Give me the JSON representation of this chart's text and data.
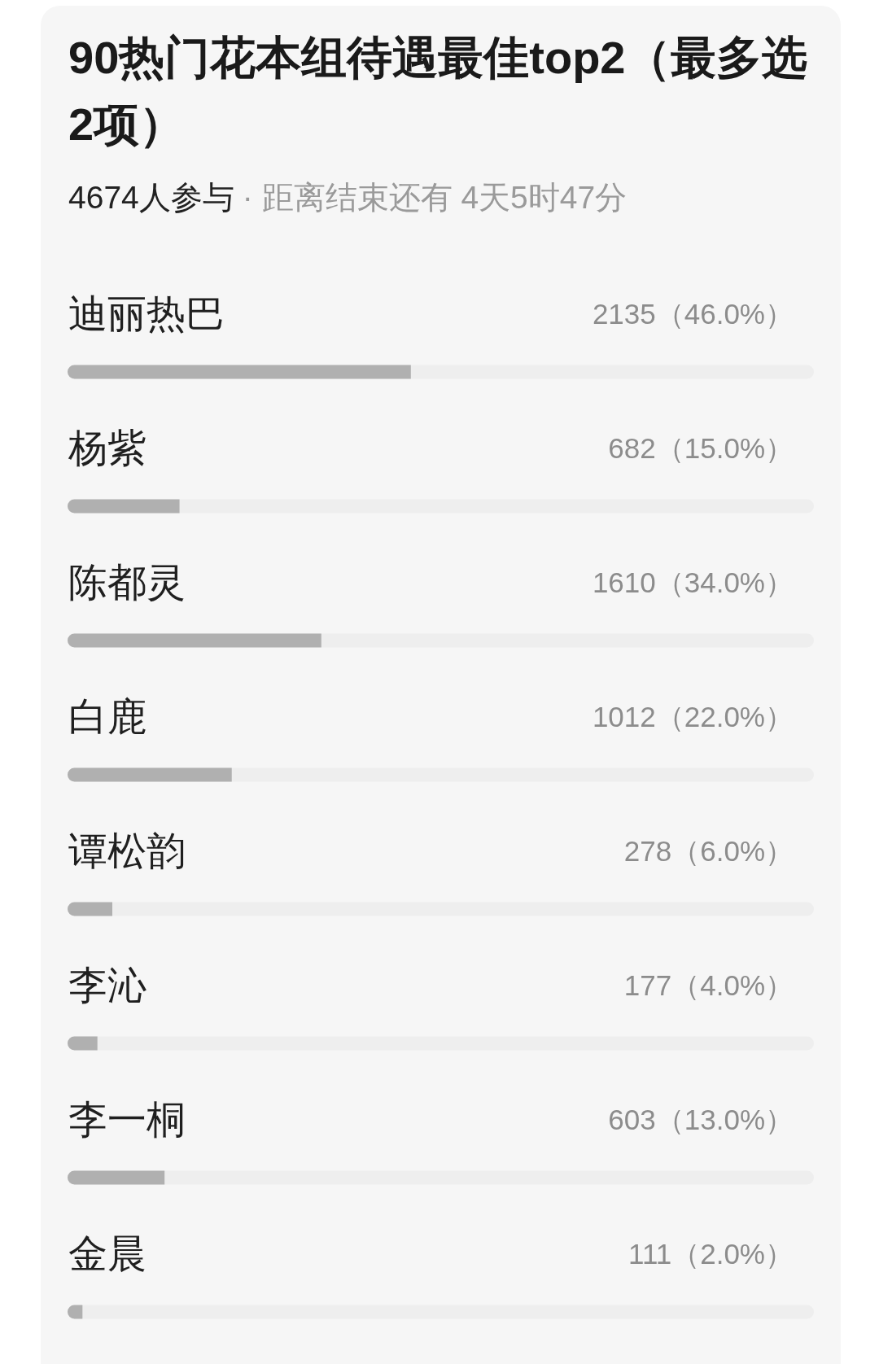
{
  "chart_data": {
    "type": "bar",
    "orientation": "horizontal",
    "title": "90热门花本组待遇最佳top2（最多选2项）",
    "subtitle": "4674人参与",
    "annotations": [
      "· 距离结束还有 4天5时47分"
    ],
    "categories": [
      "迪丽热巴",
      "杨紫",
      "陈都灵",
      "白鹿",
      "谭松韵",
      "李沁",
      "李一桐",
      "金晨"
    ],
    "values": [
      46,
      15,
      34,
      22,
      6,
      4,
      13,
      2
    ],
    "value_labels": [
      "2135（46.0%）",
      "682（15.0%）",
      "1610（34.0%）",
      "1012（22.0%）",
      "278（6.0%）",
      "177（4.0%）",
      "603（13.0%）",
      "111（2.0%）"
    ],
    "xlim": [
      0,
      100
    ],
    "color": "#b0b0b0"
  }
}
